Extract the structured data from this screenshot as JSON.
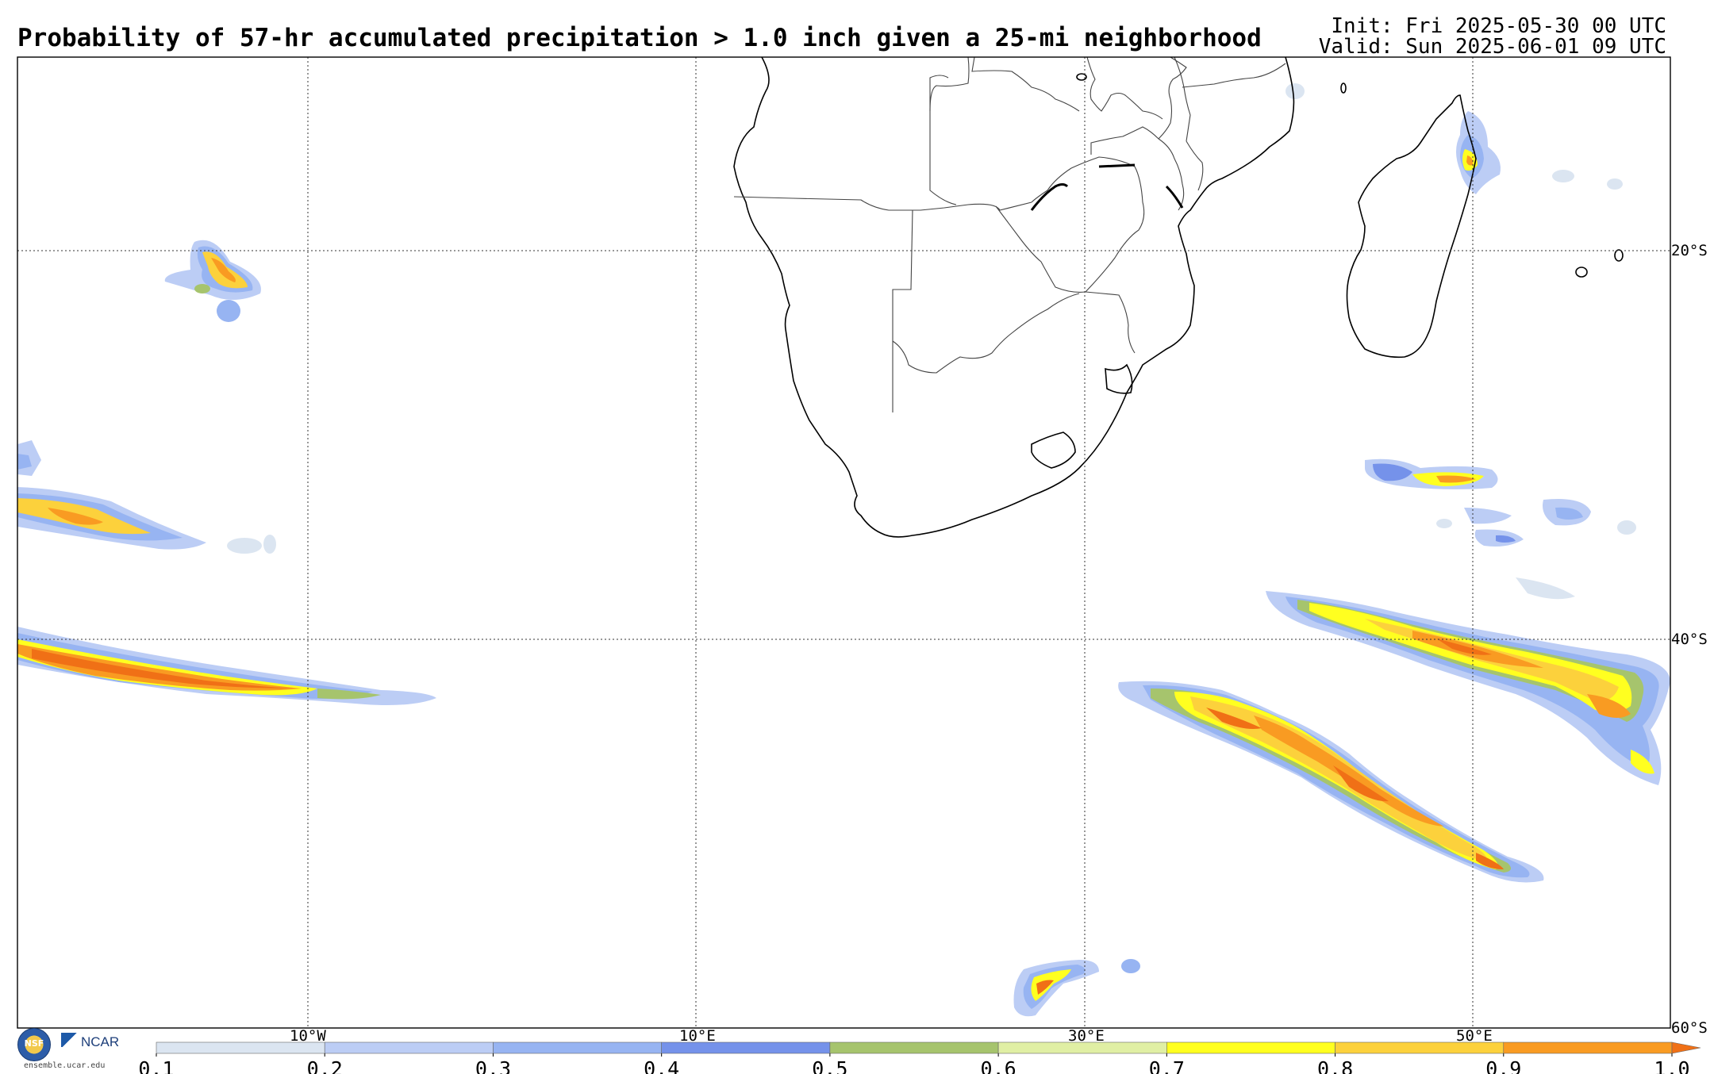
{
  "header": {
    "title": "Probability of 57-hr accumulated precipitation > 1.0 inch given a 25-mi neighborhood",
    "init": "Init: Fri 2025-05-30 00 UTC",
    "valid": "Valid: Sun 2025-06-01 09 UTC"
  },
  "map": {
    "lon_labels": [
      "10°W",
      "10°E",
      "30°E",
      "50°E"
    ],
    "lat_labels": [
      "20°S",
      "40°S",
      "60°S"
    ],
    "grid": true,
    "region": "Southern Africa and adjacent South Atlantic / Indian Ocean"
  },
  "colorbar": {
    "ticks": [
      "0.1",
      "0.2",
      "0.3",
      "0.4",
      "0.5",
      "0.6",
      "0.7",
      "0.8",
      "0.9",
      "1.0"
    ],
    "colors": [
      "#dbe5f1",
      "#bccdf5",
      "#97b4f2",
      "#7592ea",
      "#a6c46d",
      "#e0efa4",
      "#ffff20",
      "#fcd13c",
      "#f99b22"
    ],
    "extend_color": "#f07016"
  },
  "logos": {
    "nsf": "NSF",
    "ncar": "NCAR",
    "url": "ensemble.ucar.edu"
  }
}
